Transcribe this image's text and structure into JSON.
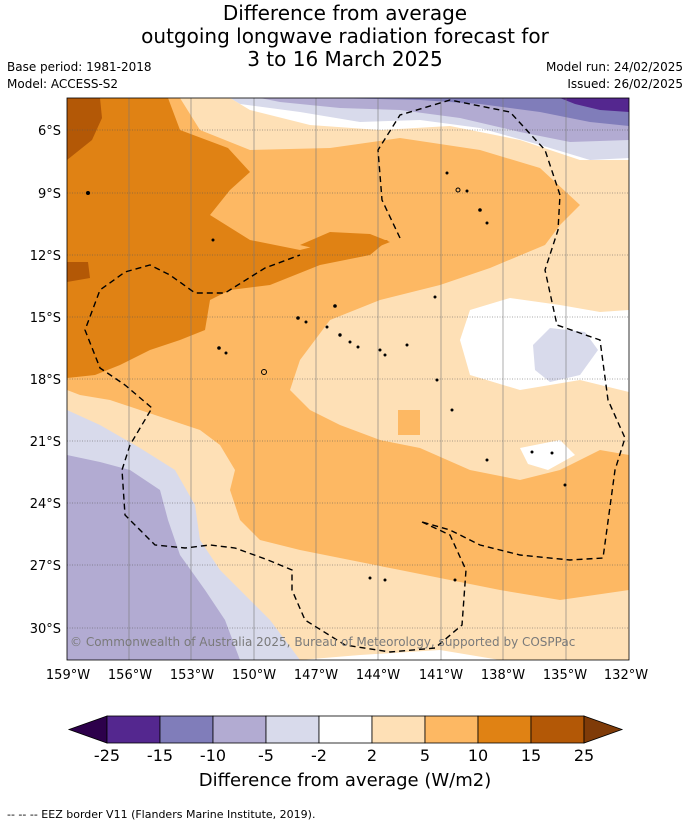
{
  "header": {
    "title_lines": [
      "Difference from average",
      "outgoing longwave radiation forecast for",
      "3 to 16 March 2025"
    ],
    "base_period": "Base period: 1981-2018",
    "model": "Model: ACCESS-S2",
    "model_run": "Model run: 24/02/2025",
    "issued": "Issued: 26/02/2025"
  },
  "map": {
    "lat_labels": [
      "6°S",
      "9°S",
      "12°S",
      "15°S",
      "18°S",
      "21°S",
      "24°S",
      "27°S",
      "30°S"
    ],
    "lon_labels": [
      "159°W",
      "156°W",
      "153°W",
      "150°W",
      "147°W",
      "144°W",
      "141°W",
      "138°W",
      "135°W",
      "132°W"
    ],
    "copyright": "© Commonwealth of Australia 2025, Bureau of Meteorology, supported by COSPPac"
  },
  "colorbar": {
    "ticks": [
      "-25",
      "-15",
      "-10",
      "-5",
      "-2",
      "2",
      "5",
      "10",
      "15",
      "25"
    ],
    "colors": [
      "#54278f",
      "#807dba",
      "#b2abd2",
      "#d8daeb",
      "#ffffff",
      "#fee0b6",
      "#fdb863",
      "#e08214",
      "#b35806"
    ],
    "under_color": "#2d004b",
    "over_color": "#7f3b08",
    "title": "Difference from average (W/m2)"
  },
  "footer": {
    "eez_note": "--  --  -- EEZ border V11 (Flanders Marine Institute, 2019)."
  }
}
